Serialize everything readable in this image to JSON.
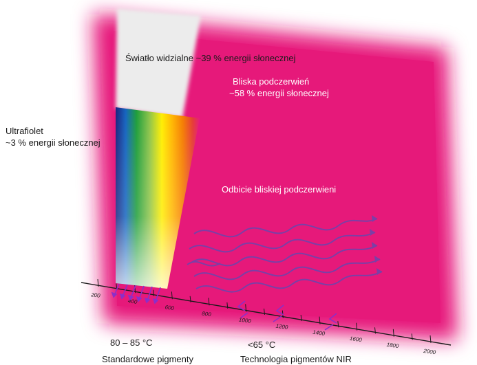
{
  "labels": {
    "visible_light": "Światło widzialne ~39 % energii słonecznej",
    "nir_line1": "Bliska podczerwień",
    "nir_line2": "~58 % energii słonecznej",
    "uv_line1": "Ultrafiolet",
    "uv_line2": "~3 % energii słonecznej",
    "nir_reflection": "Odbicie bliskiej podczerwieni",
    "temp_standard": "80 – 85 °C",
    "temp_nir": "<65 °C",
    "caption_standard": "Standardowe pigmenty",
    "caption_nir": "Technologia pigmentów NIR"
  },
  "axis": {
    "ticks": [
      "200",
      "400",
      "600",
      "800",
      "1000",
      "1200",
      "1400",
      "1600",
      "1800",
      "2000"
    ]
  },
  "colors": {
    "nir_band": "#e6197a",
    "visible_beam": "#ededed",
    "arrows": "#7b3fa6",
    "axis": "#1a1a1a"
  }
}
